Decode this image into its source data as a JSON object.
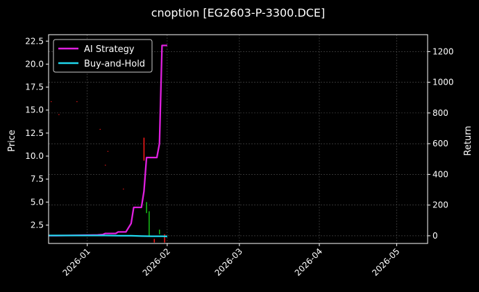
{
  "chart_data": {
    "type": "line",
    "title": "cnoption [EG2603-P-3300.DCE]",
    "xlabel": "",
    "ylabel": "Price",
    "y2label": "Return",
    "xlim": [
      "2025-12-17",
      "2026-05-13"
    ],
    "ylim": [
      0.5,
      23.2
    ],
    "y2lim": [
      -50,
      1310
    ],
    "grid": true,
    "legend_position": "top-left",
    "x_ticks": [
      "2026-01-01",
      "2026-02-01",
      "2026-03-01",
      "2026-04-01",
      "2026-05-01"
    ],
    "x_tick_labels": [
      "2026-01",
      "2026-02",
      "2026-03",
      "2026-04",
      "2026-05"
    ],
    "y_ticks": [
      2.5,
      5.0,
      7.5,
      10.0,
      12.5,
      15.0,
      17.5,
      20.0,
      22.5
    ],
    "y_tick_labels": [
      "2.5",
      "5.0",
      "7.5",
      "10.0",
      "12.5",
      "15.0",
      "17.5",
      "20.0",
      "22.5"
    ],
    "y2_ticks": [
      0,
      200,
      400,
      600,
      800,
      1000,
      1200
    ],
    "y2_tick_labels": [
      "0",
      "200",
      "400",
      "600",
      "800",
      "1000",
      "1200"
    ],
    "series": [
      {
        "name": "AI Strategy",
        "axis": "right",
        "color": "#e020e0",
        "points": [
          [
            "2025-12-17",
            1
          ],
          [
            "2025-12-20",
            1
          ],
          [
            "2025-12-24",
            2
          ],
          [
            "2025-12-28",
            3
          ],
          [
            "2026-01-01",
            4
          ],
          [
            "2026-01-05",
            5
          ],
          [
            "2026-01-07",
            8
          ],
          [
            "2026-01-08",
            15
          ],
          [
            "2026-01-10",
            15
          ],
          [
            "2026-01-12",
            15
          ],
          [
            "2026-01-13",
            25
          ],
          [
            "2026-01-14",
            25
          ],
          [
            "2026-01-15",
            25
          ],
          [
            "2026-01-16",
            25
          ],
          [
            "2026-01-18",
            80
          ],
          [
            "2026-01-19",
            185
          ],
          [
            "2026-01-21",
            185
          ],
          [
            "2026-01-22",
            185
          ],
          [
            "2026-01-23",
            290
          ],
          [
            "2026-01-24",
            510
          ],
          [
            "2026-01-25",
            510
          ],
          [
            "2026-01-26",
            510
          ],
          [
            "2026-01-27",
            510
          ],
          [
            "2026-01-28",
            510
          ],
          [
            "2026-01-29",
            600
          ],
          [
            "2026-01-30",
            1240
          ],
          [
            "2026-01-31",
            1240
          ],
          [
            "2026-02-01",
            1240
          ]
        ]
      },
      {
        "name": "Buy-and-Hold",
        "axis": "right",
        "color": "#20d8ee",
        "points": [
          [
            "2025-12-17",
            2
          ],
          [
            "2025-12-24",
            2
          ],
          [
            "2026-01-01",
            2
          ],
          [
            "2026-01-08",
            2
          ],
          [
            "2026-01-14",
            0
          ],
          [
            "2026-01-18",
            0
          ],
          [
            "2026-01-22",
            -2
          ],
          [
            "2026-01-26",
            -3
          ],
          [
            "2026-01-30",
            -3
          ],
          [
            "2026-02-01",
            -4
          ]
        ]
      }
    ],
    "candles": [
      {
        "date": "2025-12-18",
        "open": 15.9,
        "close": 15.95,
        "direction": "down"
      },
      {
        "date": "2025-12-21",
        "open": 14.5,
        "close": 14.55,
        "direction": "down"
      },
      {
        "date": "2025-12-28",
        "open": 15.9,
        "close": 15.95,
        "direction": "down"
      },
      {
        "date": "2026-01-06",
        "open": 12.9,
        "close": 12.95,
        "direction": "down"
      },
      {
        "date": "2026-01-08",
        "open": 9.0,
        "close": 9.05,
        "direction": "down"
      },
      {
        "date": "2026-01-09",
        "open": 10.5,
        "close": 10.55,
        "direction": "down"
      },
      {
        "date": "2026-01-15",
        "open": 6.4,
        "close": 6.45,
        "direction": "down"
      },
      {
        "date": "2026-01-23",
        "open": 12.0,
        "close": 9.5,
        "direction": "down"
      },
      {
        "date": "2026-01-24",
        "open": 5.0,
        "close": 3.8,
        "direction": "up"
      },
      {
        "date": "2026-01-25",
        "open": 4.0,
        "close": 1.3,
        "direction": "up"
      },
      {
        "date": "2026-01-27",
        "open": 1.0,
        "close": 0.6,
        "direction": "down"
      },
      {
        "date": "2026-01-29",
        "open": 2.0,
        "close": 1.5,
        "direction": "up"
      },
      {
        "date": "2026-01-31",
        "open": 1.5,
        "close": 0.6,
        "direction": "down"
      }
    ]
  }
}
